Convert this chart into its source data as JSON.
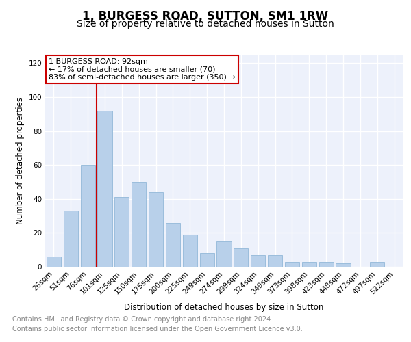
{
  "title": "1, BURGESS ROAD, SUTTON, SM1 1RW",
  "subtitle": "Size of property relative to detached houses in Sutton",
  "xlabel": "Distribution of detached houses by size in Sutton",
  "ylabel": "Number of detached properties",
  "categories": [
    "26sqm",
    "51sqm",
    "76sqm",
    "101sqm",
    "125sqm",
    "150sqm",
    "175sqm",
    "200sqm",
    "225sqm",
    "249sqm",
    "274sqm",
    "299sqm",
    "324sqm",
    "349sqm",
    "373sqm",
    "398sqm",
    "423sqm",
    "448sqm",
    "472sqm",
    "497sqm",
    "522sqm"
  ],
  "values": [
    6,
    33,
    60,
    92,
    41,
    50,
    44,
    26,
    19,
    8,
    15,
    11,
    7,
    7,
    3,
    3,
    3,
    2,
    0,
    3,
    0
  ],
  "bar_color": "#b8d0ea",
  "bar_edge_color": "#92b8d8",
  "background_color": "#edf1fb",
  "grid_color": "#ffffff",
  "vline_color": "#cc0000",
  "annotation_title": "1 BURGESS ROAD: 92sqm",
  "annotation_line1": "← 17% of detached houses are smaller (70)",
  "annotation_line2": "83% of semi-detached houses are larger (350) →",
  "annotation_box_color": "#cc0000",
  "ylim": [
    0,
    125
  ],
  "yticks": [
    0,
    20,
    40,
    60,
    80,
    100,
    120
  ],
  "footer_line1": "Contains HM Land Registry data © Crown copyright and database right 2024.",
  "footer_line2": "Contains public sector information licensed under the Open Government Licence v3.0.",
  "title_fontsize": 12,
  "subtitle_fontsize": 10,
  "axis_label_fontsize": 8.5,
  "tick_fontsize": 7.5,
  "annotation_fontsize": 8,
  "footer_fontsize": 7
}
